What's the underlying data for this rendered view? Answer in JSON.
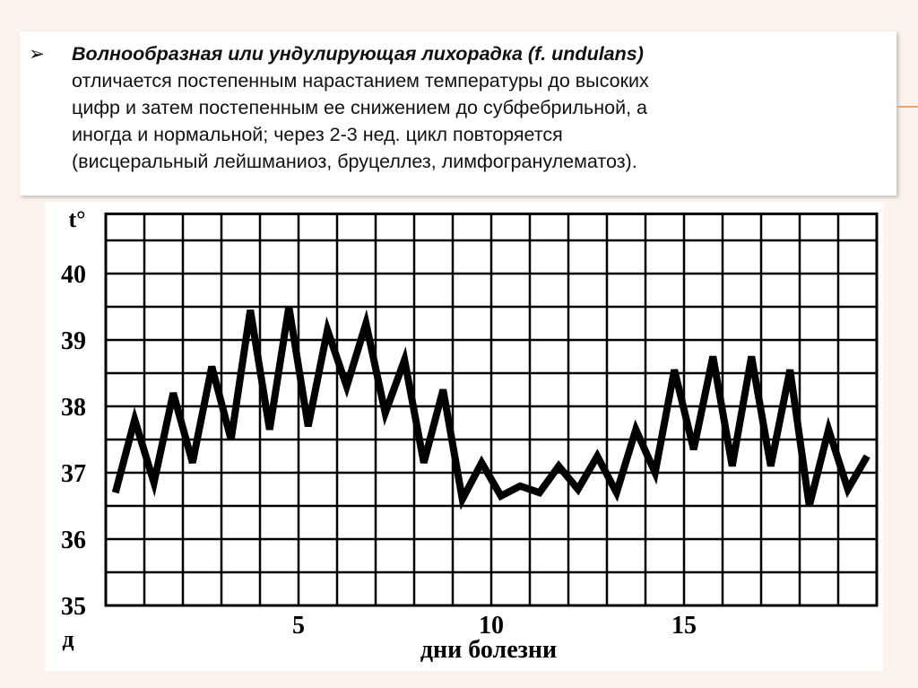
{
  "slide": {
    "bullet": "➢",
    "heading": "Волнообразная или ундулирующая лихорадка (f. undulans)",
    "lines": [
      "отличается постепенным нарастанием температуры до высоких",
      "цифр и затем постепенным ее снижением до субфебрильной, а",
      "иногда и нормальной; через 2-3 нед. цикл повторяется",
      "(висцеральный лейшманиоз, бруцеллез, лимфогранулематоз)."
    ]
  },
  "chart_data": {
    "type": "line",
    "y_label": "t°",
    "x_unit_label": "д",
    "x_label": "дни болезни",
    "x": [
      0.25,
      0.75,
      1.25,
      1.75,
      2.25,
      2.75,
      3.25,
      3.75,
      4.25,
      4.75,
      5.25,
      5.75,
      6.25,
      6.75,
      7.25,
      7.75,
      8.25,
      8.75,
      9.25,
      9.75,
      10.25,
      10.75,
      11.25,
      11.75,
      12.25,
      12.75,
      13.25,
      13.75,
      14.25,
      14.75,
      15.25,
      15.75,
      16.25,
      16.75,
      17.25,
      17.75,
      18.25,
      18.75,
      19.25,
      19.75
    ],
    "values": [
      36.7,
      37.8,
      36.85,
      38.2,
      37.15,
      38.6,
      37.5,
      39.45,
      37.65,
      39.5,
      37.7,
      39.15,
      38.3,
      39.25,
      37.9,
      38.7,
      37.15,
      38.25,
      36.6,
      37.15,
      36.65,
      36.8,
      36.7,
      37.1,
      36.75,
      37.25,
      36.7,
      37.65,
      37.0,
      38.55,
      37.35,
      38.75,
      37.1,
      38.75,
      37.1,
      38.55,
      36.5,
      37.65,
      36.75,
      37.25
    ],
    "color": "#000000",
    "xlim": [
      0,
      20
    ],
    "xticks": [
      5,
      10,
      15
    ],
    "xgrid": [
      1,
      2,
      3,
      4,
      5,
      6,
      7,
      8,
      9,
      10,
      11,
      12,
      13,
      14,
      15,
      16,
      17,
      18,
      19
    ],
    "ylim": [
      35,
      40.9
    ],
    "yticks": [
      35,
      36,
      37,
      38,
      39,
      40
    ],
    "ygrid": [
      35.5,
      36,
      36.5,
      37,
      37.5,
      38,
      38.5,
      39,
      39.5,
      40,
      40.5
    ],
    "grid": true
  }
}
